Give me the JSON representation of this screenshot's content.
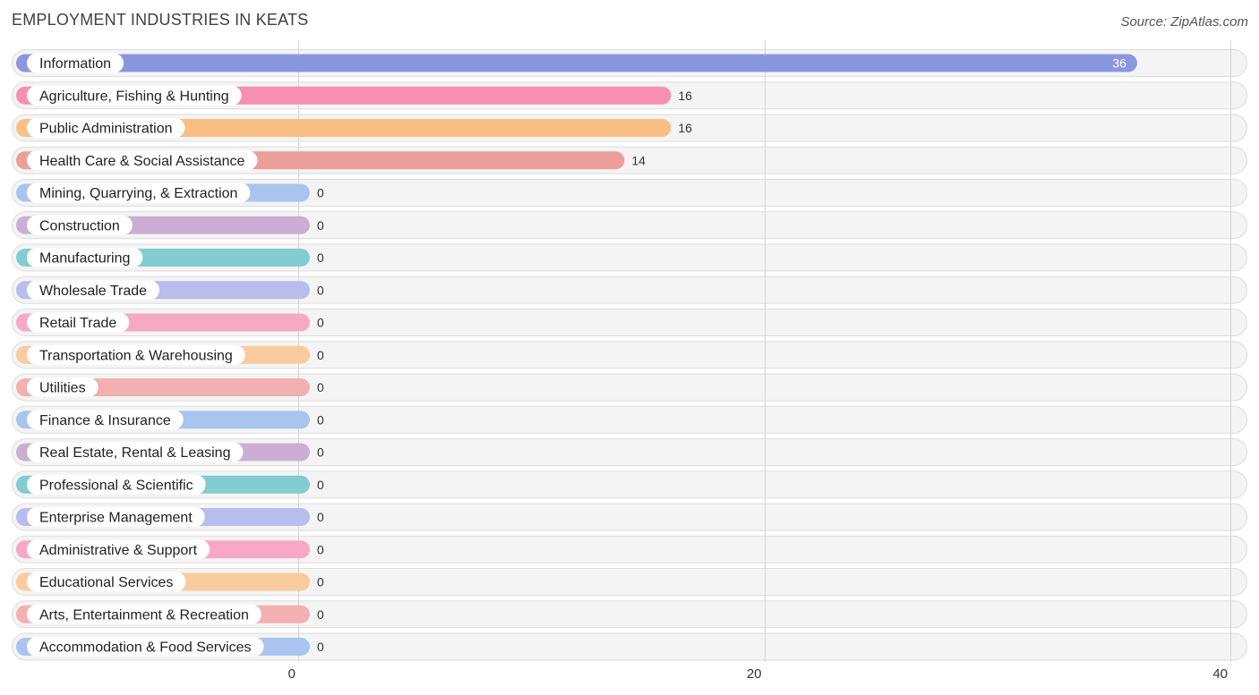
{
  "header": {
    "title": "EMPLOYMENT INDUSTRIES IN KEATS",
    "source": "Source: ZipAtlas.com"
  },
  "chart_data": {
    "type": "bar",
    "orientation": "horizontal",
    "title": "EMPLOYMENT INDUSTRIES IN KEATS",
    "xlim": [
      0,
      40
    ],
    "xticks": [
      0,
      20,
      40
    ],
    "grid": true,
    "categories": [
      "Information",
      "Agriculture, Fishing & Hunting",
      "Public Administration",
      "Health Care & Social Assistance",
      "Mining, Quarrying, & Extraction",
      "Construction",
      "Manufacturing",
      "Wholesale Trade",
      "Retail Trade",
      "Transportation & Warehousing",
      "Utilities",
      "Finance & Insurance",
      "Real Estate, Rental & Leasing",
      "Professional & Scientific",
      "Enterprise Management",
      "Administrative & Support",
      "Educational Services",
      "Arts, Entertainment & Recreation",
      "Accommodation & Food Services"
    ],
    "values": [
      36,
      16,
      16,
      14,
      0,
      0,
      0,
      0,
      0,
      0,
      0,
      0,
      0,
      0,
      0,
      0,
      0,
      0,
      0
    ],
    "colors": [
      "#8a97df",
      "#f78fb3",
      "#f9bf85",
      "#ec9e9a",
      "#a9c4ee",
      "#ccaed4",
      "#82ccd2",
      "#b8bded",
      "#f7a8c5",
      "#facb9e",
      "#f2b0b0",
      "#a9c4ee",
      "#ccaed4",
      "#82ccd2",
      "#b8bded",
      "#f7a8c5",
      "#facb9e",
      "#f2b0b0",
      "#a9c4ee"
    ]
  }
}
